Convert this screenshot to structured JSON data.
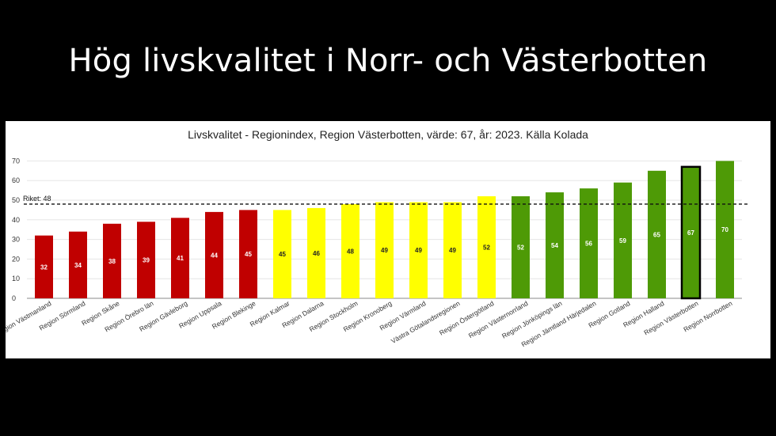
{
  "slide": {
    "title": "Hög livskvalitet i Norr- och Västerbotten"
  },
  "colors": {
    "red": "#c00000",
    "yellow": "#ffff00",
    "green": "#4e9a06",
    "highlight_border": "#000000"
  },
  "chart_data": {
    "type": "bar",
    "title": "Livskvalitet - Regionindex, Region Västerbotten, värde: 67, år: 2023. Källa Kolada",
    "xlabel": "",
    "ylabel": "",
    "ylim": [
      0,
      75
    ],
    "yticks": [
      0,
      10,
      20,
      30,
      40,
      50,
      60,
      70
    ],
    "grid": true,
    "reference_line": {
      "label": "Riket: 48",
      "value": 48
    },
    "categories": [
      "Region Västmanland",
      "Region Sörmland",
      "Region Skåne",
      "Region Örebro län",
      "Region Gävleborg",
      "Region Uppsala",
      "Region Blekinge",
      "Region Kalmar",
      "Region Dalarna",
      "Region Stockholm",
      "Region Kronoberg",
      "Region Värmland",
      "Västra Götalandsregionen",
      "Region Östergötland",
      "Region Västernorrland",
      "Region Jönköpings län",
      "Region Jämtland Härjedalen",
      "Region Gotland",
      "Region Halland",
      "Region Västerbotten",
      "Region Norrbotten"
    ],
    "values": [
      32,
      34,
      38,
      39,
      41,
      44,
      45,
      45,
      46,
      48,
      49,
      49,
      49,
      52,
      52,
      54,
      56,
      59,
      65,
      67,
      70
    ],
    "bar_labels": [
      "32",
      "34",
      "38",
      "39",
      "41",
      "44",
      "45",
      "45",
      "46",
      "48",
      "49",
      "49",
      "49",
      "52",
      "52",
      "54",
      "56",
      "59",
      "65",
      "67",
      "70"
    ],
    "bar_colors": [
      "red",
      "red",
      "red",
      "red",
      "red",
      "red",
      "red",
      "yellow",
      "yellow",
      "yellow",
      "yellow",
      "yellow",
      "yellow",
      "yellow",
      "green",
      "green",
      "green",
      "green",
      "green",
      "green",
      "green"
    ],
    "highlight": "Region Västerbotten"
  }
}
